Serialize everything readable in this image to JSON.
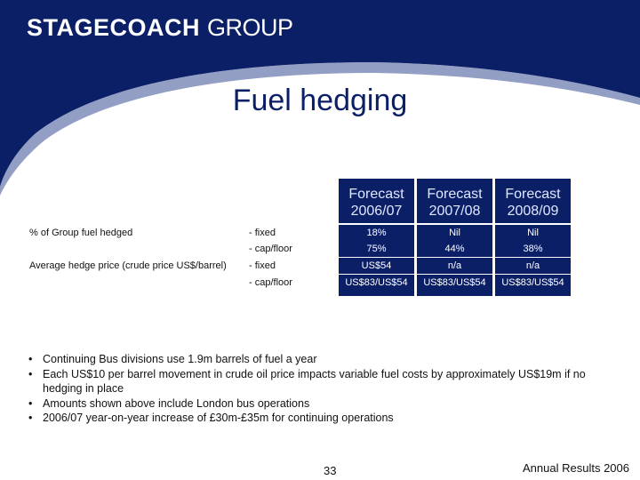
{
  "header": {
    "logo_bold": "STAGECOACH",
    "logo_light": "GROUP",
    "title": "Fuel hedging"
  },
  "table": {
    "columns": [
      {
        "line1": "Forecast",
        "line2": "2006/07"
      },
      {
        "line1": "Forecast",
        "line2": "2007/08"
      },
      {
        "line1": "Forecast",
        "line2": "2008/09"
      }
    ],
    "rows": [
      {
        "label": "% of Group fuel hedged",
        "sub": "- fixed",
        "values": [
          "18%",
          "Nil",
          "Nil"
        ]
      },
      {
        "label": "",
        "sub": "- cap/floor",
        "values": [
          "75%",
          "44%",
          "38%"
        ]
      },
      {
        "label": "Average hedge price (crude price US$/barrel)",
        "sub": "- fixed",
        "values": [
          "US$54",
          "n/a",
          "n/a"
        ]
      },
      {
        "label": "",
        "sub": "- cap/floor",
        "values": [
          "US$83/US$54",
          "US$83/US$54",
          "US$83/US$54"
        ]
      }
    ]
  },
  "bullets": [
    "Continuing Bus divisions use 1.9m barrels of fuel a year",
    "Each US$10 per barrel movement in crude oil price impacts variable fuel costs by approximately US$19m if no hedging in place",
    "Amounts shown above include London bus operations",
    "2006/07 year-on-year increase of £30m-£35m for continuing operations"
  ],
  "footer": {
    "page_number": "33",
    "text": "Annual Results 2006"
  },
  "colors": {
    "navy": "#0b1f66"
  }
}
